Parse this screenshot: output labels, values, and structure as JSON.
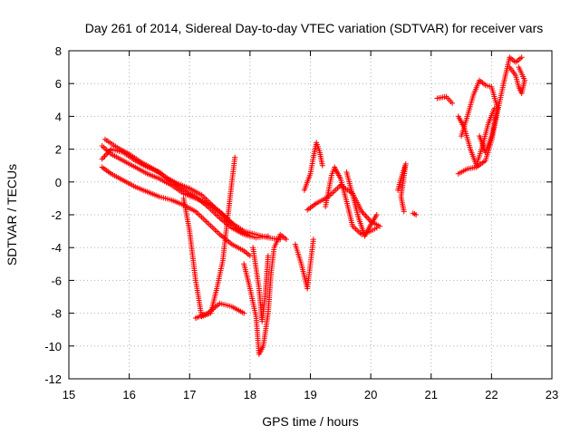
{
  "chart_data": {
    "type": "scatter",
    "title": "Day 261 of 2014, Sidereal Day-to-day VTEC variation (SDTVAR) for receiver vars",
    "xlabel": "GPS time / hours",
    "ylabel": "SDTVAR / TECUs",
    "xlim": [
      15,
      23
    ],
    "ylim": [
      -12,
      8
    ],
    "xticks": [
      15,
      16,
      17,
      18,
      19,
      20,
      21,
      22,
      23
    ],
    "yticks": [
      -12,
      -10,
      -8,
      -6,
      -4,
      -2,
      0,
      2,
      4,
      6,
      8
    ],
    "grid": true,
    "marker": "+",
    "series": [
      {
        "name": "SDTVAR",
        "color": "#ff0000",
        "segments": [
          [
            [
              15.55,
              2.2
            ],
            [
              15.7,
              1.7
            ],
            [
              15.9,
              1.3
            ],
            [
              16.1,
              0.9
            ],
            [
              16.3,
              0.5
            ],
            [
              16.5,
              0.2
            ],
            [
              16.7,
              -0.2
            ],
            [
              16.9,
              -0.7
            ],
            [
              17.1,
              -1.0
            ],
            [
              17.3,
              -1.3
            ],
            [
              17.5,
              -1.8
            ],
            [
              17.7,
              -2.5
            ],
            [
              17.9,
              -3.0
            ],
            [
              18.1,
              -3.2
            ],
            [
              18.3,
              -3.4
            ],
            [
              18.5,
              -3.5
            ]
          ],
          [
            [
              15.55,
              1.4
            ],
            [
              15.7,
              2.0
            ],
            [
              15.9,
              1.8
            ],
            [
              16.1,
              1.3
            ],
            [
              16.3,
              0.9
            ],
            [
              16.5,
              0.6
            ],
            [
              16.7,
              0.0
            ],
            [
              16.9,
              -0.5
            ],
            [
              17.1,
              -0.9
            ],
            [
              17.3,
              -1.5
            ],
            [
              17.5,
              -2.2
            ],
            [
              17.7,
              -2.8
            ],
            [
              17.9,
              -3.2
            ],
            [
              18.1,
              -3.4
            ],
            [
              18.3,
              -3.3
            ]
          ],
          [
            [
              15.55,
              0.9
            ],
            [
              15.7,
              0.5
            ],
            [
              15.9,
              0.1
            ],
            [
              16.1,
              -0.3
            ],
            [
              16.3,
              -0.6
            ],
            [
              16.5,
              -0.9
            ],
            [
              16.7,
              -1.1
            ],
            [
              16.9,
              -1.4
            ],
            [
              17.1,
              -1.8
            ],
            [
              17.3,
              -2.5
            ],
            [
              17.5,
              -3.2
            ],
            [
              17.7,
              -3.8
            ],
            [
              17.9,
              -4.2
            ],
            [
              18.0,
              -4.5
            ]
          ],
          [
            [
              15.6,
              2.6
            ],
            [
              15.8,
              2.1
            ],
            [
              16.0,
              1.7
            ],
            [
              16.2,
              1.2
            ],
            [
              16.4,
              0.8
            ],
            [
              16.6,
              0.3
            ],
            [
              16.8,
              -0.1
            ],
            [
              17.0,
              -0.4
            ],
            [
              17.2,
              -0.8
            ],
            [
              17.4,
              -1.5
            ],
            [
              17.6,
              -2.2
            ],
            [
              17.8,
              -2.9
            ],
            [
              18.0,
              -3.3
            ]
          ],
          [
            [
              16.9,
              -1.0
            ],
            [
              17.0,
              -3.0
            ],
            [
              17.1,
              -6.0
            ],
            [
              17.2,
              -8.2
            ],
            [
              17.35,
              -8.0
            ],
            [
              17.45,
              -6.5
            ],
            [
              17.55,
              -4.8
            ],
            [
              17.62,
              -2.5
            ],
            [
              17.7,
              0.0
            ],
            [
              17.75,
              1.5
            ]
          ],
          [
            [
              17.1,
              -8.3
            ],
            [
              17.3,
              -8.0
            ],
            [
              17.5,
              -7.4
            ],
            [
              17.7,
              -7.6
            ],
            [
              17.9,
              -8.0
            ]
          ],
          [
            [
              17.9,
              -5.0
            ],
            [
              18.0,
              -6.5
            ],
            [
              18.1,
              -8.2
            ],
            [
              18.15,
              -10.5
            ],
            [
              18.22,
              -10.0
            ],
            [
              18.3,
              -8.0
            ],
            [
              18.35,
              -5.5
            ],
            [
              18.4,
              -4.0
            ],
            [
              18.5,
              -3.2
            ],
            [
              18.6,
              -3.5
            ]
          ],
          [
            [
              18.05,
              -4.0
            ],
            [
              18.15,
              -6.5
            ],
            [
              18.2,
              -8.5
            ],
            [
              18.25,
              -7.0
            ],
            [
              18.3,
              -4.5
            ]
          ],
          [
            [
              18.75,
              -3.8
            ],
            [
              18.85,
              -5.0
            ],
            [
              18.95,
              -6.5
            ],
            [
              19.0,
              -5.0
            ],
            [
              19.05,
              -3.5
            ]
          ],
          [
            [
              18.9,
              -0.5
            ],
            [
              19.0,
              0.5
            ],
            [
              19.05,
              1.5
            ],
            [
              19.1,
              2.4
            ],
            [
              19.15,
              1.9
            ],
            [
              19.2,
              1.0
            ]
          ],
          [
            [
              18.95,
              -1.7
            ],
            [
              19.1,
              -1.3
            ],
            [
              19.3,
              -0.9
            ],
            [
              19.5,
              -0.2
            ],
            [
              19.7,
              -0.7
            ],
            [
              19.85,
              -1.8
            ],
            [
              20.0,
              -2.4
            ],
            [
              20.15,
              -2.7
            ]
          ],
          [
            [
              19.25,
              -1.5
            ],
            [
              19.35,
              0.4
            ],
            [
              19.4,
              0.9
            ],
            [
              19.5,
              0.2
            ],
            [
              19.6,
              -1.2
            ],
            [
              19.7,
              -2.7
            ],
            [
              19.85,
              -3.2
            ],
            [
              20.0,
              -3.0
            ],
            [
              20.1,
              -2.8
            ]
          ],
          [
            [
              19.6,
              0.6
            ],
            [
              19.7,
              -0.8
            ],
            [
              19.8,
              -2.2
            ],
            [
              19.9,
              -3.3
            ],
            [
              20.0,
              -2.6
            ],
            [
              20.1,
              -2.0
            ]
          ],
          [
            [
              20.45,
              -0.5
            ],
            [
              20.5,
              0.2
            ],
            [
              20.55,
              0.8
            ],
            [
              20.58,
              1.1
            ],
            [
              20.5,
              -0.9
            ],
            [
              20.55,
              -1.8
            ]
          ],
          [
            [
              20.7,
              -1.9
            ],
            [
              20.75,
              -2.0
            ]
          ],
          [
            [
              21.1,
              5.1
            ],
            [
              21.25,
              5.2
            ],
            [
              21.35,
              4.8
            ]
          ],
          [
            [
              21.45,
              4.0
            ],
            [
              21.55,
              3.3
            ],
            [
              21.65,
              2.0
            ],
            [
              21.75,
              1.0
            ],
            [
              21.85,
              2.2
            ],
            [
              21.95,
              3.6
            ],
            [
              22.05,
              4.5
            ]
          ],
          [
            [
              21.5,
              2.8
            ],
            [
              21.6,
              4.0
            ],
            [
              21.7,
              5.3
            ],
            [
              21.8,
              6.2
            ],
            [
              21.9,
              5.9
            ],
            [
              22.0,
              5.8
            ],
            [
              22.1,
              4.5
            ],
            [
              22.0,
              2.8
            ],
            [
              21.9,
              1.8
            ],
            [
              21.8,
              2.8
            ]
          ],
          [
            [
              21.45,
              0.5
            ],
            [
              21.6,
              0.8
            ],
            [
              21.75,
              0.9
            ],
            [
              21.9,
              1.3
            ],
            [
              22.0,
              2.5
            ],
            [
              22.1,
              4.3
            ],
            [
              22.2,
              6.0
            ],
            [
              22.3,
              7.6
            ],
            [
              22.4,
              7.3
            ],
            [
              22.5,
              7.6
            ]
          ],
          [
            [
              22.3,
              7.0
            ],
            [
              22.4,
              6.5
            ],
            [
              22.45,
              5.8
            ],
            [
              22.5,
              5.4
            ],
            [
              22.55,
              6.2
            ],
            [
              22.45,
              7.0
            ]
          ]
        ]
      }
    ]
  }
}
